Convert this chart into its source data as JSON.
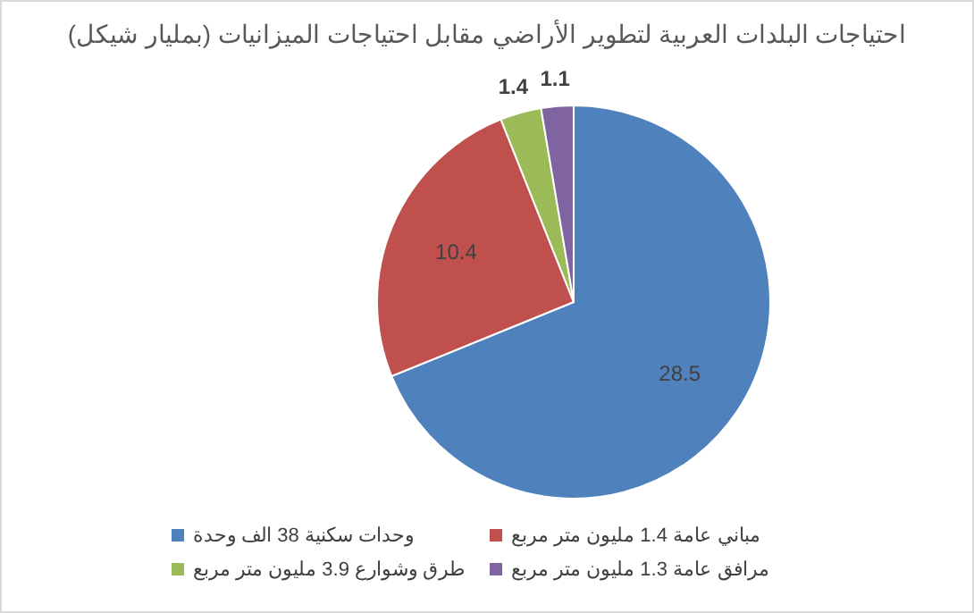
{
  "chart_data": {
    "type": "pie",
    "title": "احتياجات البلدات العربية لتطوير الأراضي مقابل احتياجات الميزانيات (بمليار شيكل)",
    "categories": [
      "وحدات سكنية 38 الف وحدة",
      "مباني عامة 1.4 مليون متر مربع",
      "طرق وشوارع 3.9 مليون متر مربع",
      "مرافق عامة 1.3 مليون متر مربع"
    ],
    "values": [
      28.5,
      10.4,
      1.4,
      1.1
    ],
    "colors": [
      "#4f81bd",
      "#c0504d",
      "#9bbb59",
      "#8064a2"
    ],
    "data_labels": true,
    "legend": "bottom"
  }
}
